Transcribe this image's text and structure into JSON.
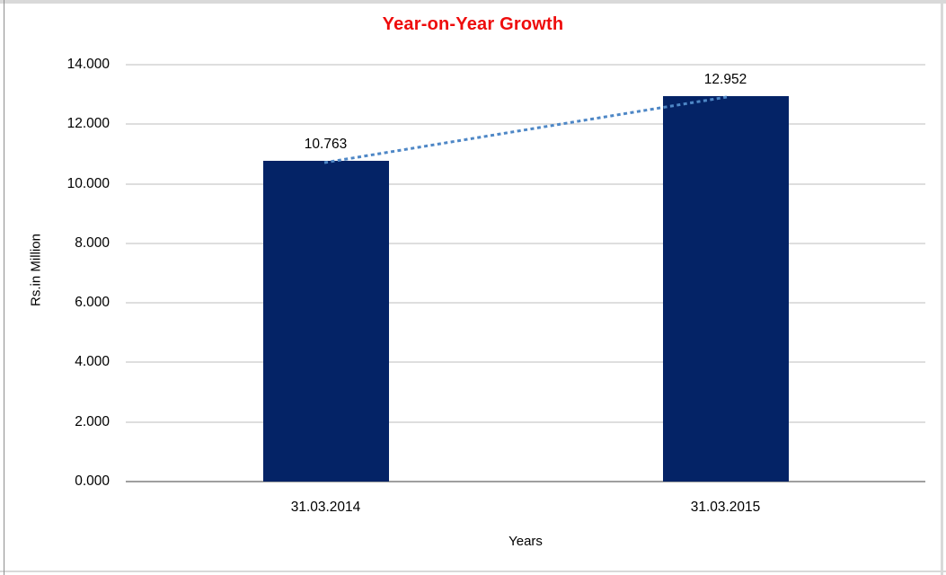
{
  "window": {
    "background": "#ffffff",
    "frame_border_color": "#d9d9d9",
    "frame_left_edge_color": "#8f8f8f"
  },
  "chart_data": {
    "type": "bar",
    "title": "Year-on-Year Growth",
    "title_color": "#ee0c0c",
    "categories": [
      "31.03.2014",
      "31.03.2015"
    ],
    "series": [
      {
        "name": "Year-on-Year Growth",
        "values": [
          10763,
          12952
        ],
        "data_labels": [
          "10.763",
          "12.952"
        ],
        "bar_color": "#042366"
      }
    ],
    "trendline": {
      "type": "linear",
      "style": "dotted",
      "color": "#4e87c6"
    },
    "xlabel": "Years",
    "ylabel": "Rs.in Million",
    "ylim": [
      0,
      14000
    ],
    "ytick_step": 2000,
    "ytick_labels": [
      "0.000",
      "2.000",
      "4.000",
      "6.000",
      "8.000",
      "10.000",
      "12.000",
      "14.000"
    ],
    "grid": true,
    "legend": "none",
    "gridline_color": "#dedede",
    "axis_line_color": "#9f9f9f",
    "text_color": "#000000"
  }
}
